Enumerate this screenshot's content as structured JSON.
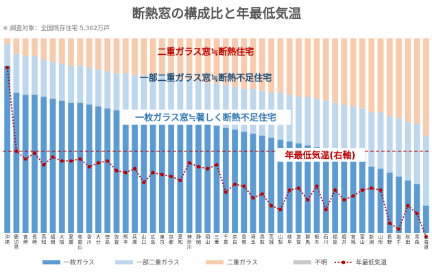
{
  "chart_data": {
    "type": "bar",
    "stacked": true,
    "title": "断熱窓の構成比と年最低気温",
    "note": "※ 調査対象：全国既存住宅 5,362万戸",
    "categories": [
      "沖縄",
      "鹿児島",
      "宮崎",
      "長崎",
      "高知",
      "福岡",
      "大阪",
      "愛媛",
      "和歌山",
      "香川",
      "大分",
      "徳島",
      "佐賀",
      "熊本",
      "兵庫",
      "山口",
      "広島",
      "東京",
      "京都",
      "愛知",
      "神奈川",
      "静岡",
      "岡山",
      "三重",
      "千葉",
      "奈良",
      "島根",
      "埼玉",
      "鳥取",
      "茨城",
      "山梨",
      "岐阜",
      "滋賀",
      "群馬",
      "栃木",
      "石川",
      "福島",
      "福井",
      "宮城",
      "富山",
      "新潟",
      "山形",
      "長野",
      "岩手",
      "秋田",
      "青森",
      "北海道"
    ],
    "series": [
      {
        "name": "一枚ガラス",
        "color": "#5b9bd5",
        "values": [
          86,
          72,
          71,
          71,
          70,
          69,
          68,
          67,
          67,
          66,
          65,
          64,
          63,
          63,
          62,
          62,
          61,
          60,
          60,
          59,
          58,
          57,
          56,
          55,
          54,
          53,
          52,
          51,
          50,
          49,
          48,
          47,
          46,
          45,
          44,
          43,
          42,
          40,
          39,
          37,
          34,
          33,
          31,
          29,
          27,
          25,
          14
        ]
      },
      {
        "name": "一部二重ガラス",
        "color": "#bdd7ee",
        "values": [
          11,
          20,
          20,
          20,
          19,
          19,
          19,
          19,
          19,
          19,
          19,
          19,
          19,
          19,
          19,
          19,
          20,
          21,
          20,
          20,
          21,
          21,
          21,
          22,
          22,
          22,
          22,
          23,
          23,
          23,
          24,
          24,
          24,
          25,
          25,
          25,
          25,
          26,
          26,
          27,
          28,
          29,
          29,
          30,
          30,
          31,
          36
        ]
      },
      {
        "name": "二重ガラス",
        "color": "#f8cbad",
        "values": [
          3,
          8,
          9,
          9,
          11,
          12,
          13,
          14,
          14,
          15,
          16,
          17,
          18,
          18,
          19,
          19,
          19,
          19,
          20,
          21,
          21,
          22,
          23,
          23,
          24,
          25,
          26,
          26,
          27,
          28,
          28,
          29,
          30,
          30,
          31,
          32,
          33,
          34,
          35,
          36,
          38,
          38,
          40,
          41,
          43,
          44,
          50
        ]
      },
      {
        "name": "不明",
        "color": "#c9c9c9",
        "values": [
          0,
          0,
          0,
          0,
          0,
          0,
          0,
          0,
          0,
          0,
          0,
          0,
          0,
          0,
          0,
          0,
          0,
          0,
          0,
          0,
          0,
          0,
          0,
          0,
          0,
          0,
          0,
          0,
          0,
          0,
          0,
          0,
          0,
          0,
          0,
          0,
          0,
          0,
          0,
          0,
          0,
          0,
          0,
          0,
          0,
          0,
          0
        ]
      }
    ],
    "line_series": {
      "name": "年最低気温",
      "axis": "right",
      "color": "#c00000",
      "values": [
        0.85,
        0.42,
        0.38,
        0.41,
        0.35,
        0.39,
        0.37,
        0.37,
        0.38,
        0.34,
        0.36,
        0.37,
        0.32,
        0.31,
        0.33,
        0.26,
        0.31,
        0.3,
        0.29,
        0.27,
        0.36,
        0.34,
        0.33,
        0.35,
        0.21,
        0.25,
        0.24,
        0.18,
        0.2,
        0.14,
        0.12,
        0.22,
        0.23,
        0.17,
        0.24,
        0.12,
        0.22,
        0.17,
        0.19,
        0.22,
        0.23,
        0.22,
        0.05,
        0.02,
        0.14,
        0.1,
        -0.02
      ]
    },
    "ylim": [
      0,
      100
    ],
    "region_labels": {
      "double": "二重ガラス窓≒断熱住宅",
      "partial": "一部二重ガラス窓≒断熱不足住宅",
      "single": "一枚ガラス窓≒著しく断熱不足住宅",
      "line": "年最低気温(右軸)"
    },
    "reference_line": 0.42,
    "legend_position": "bottom",
    "grid": false,
    "colors": {
      "single_label": "#ffffff",
      "partial_label": "#1f4e79",
      "double_label": "#c00000",
      "line_label": "#c00000"
    }
  }
}
